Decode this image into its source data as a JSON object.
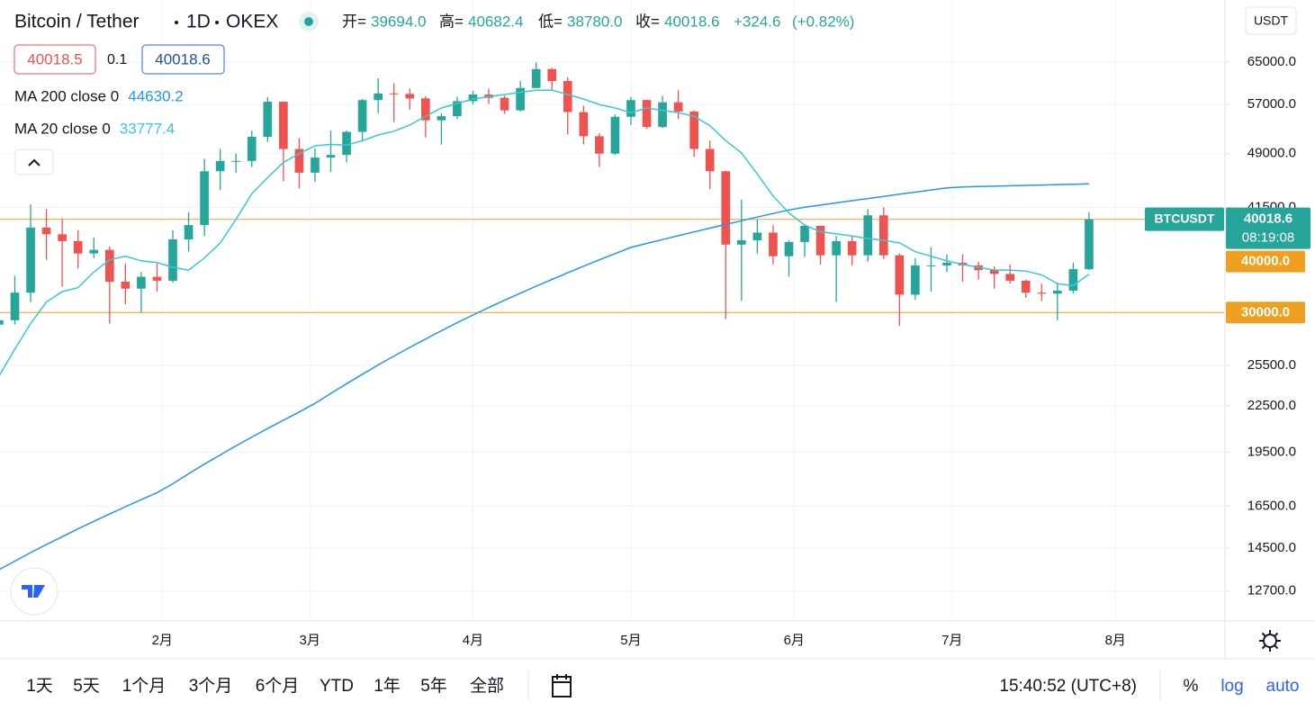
{
  "header": {
    "symbol": "Bitcoin / Tether",
    "interval": "1D",
    "exchange": "OKEX",
    "quote": [
      {
        "label": "开=",
        "value": "39694.0"
      },
      {
        "label": "高=",
        "value": "40682.4"
      },
      {
        "label": "低=",
        "value": "38780.0"
      },
      {
        "label": "收=",
        "value": "40018.6"
      }
    ],
    "change": "+324.6",
    "change_pct": "(+0.82%)",
    "bid": "40018.5",
    "spread": "0.1",
    "ask": "40018.6",
    "currency": "USDT"
  },
  "toolbar": {
    "ranges": [
      "1天",
      "5天",
      "1个月",
      "3个月",
      "6个月",
      "YTD",
      "1年",
      "5年",
      "全部"
    ],
    "time": "15:40:52 (UTC+8)",
    "percent": "%",
    "log": "log",
    "auto": "auto"
  },
  "chart_data": {
    "type": "candlestick",
    "log_scale": true,
    "grid": true,
    "up_color": "#26a69a",
    "down_color": "#ef5350",
    "xlim": [
      0.06,
      77.55
    ],
    "xticks": [
      {
        "value": 10.33,
        "label": "2月"
      },
      {
        "value": 19.67,
        "label": "3月"
      },
      {
        "value": 30,
        "label": "4月"
      },
      {
        "value": 40,
        "label": "5月"
      },
      {
        "value": 50.33,
        "label": "6月"
      },
      {
        "value": 60.33,
        "label": "7月"
      },
      {
        "value": 70.67,
        "label": "8月"
      }
    ],
    "ylim": [
      11580,
      78720
    ],
    "yticks": [
      {
        "value": 65000,
        "label": "65000.0"
      },
      {
        "value": 57000,
        "label": "57000.0"
      },
      {
        "value": 49000,
        "label": "49000.0"
      },
      {
        "value": 41500,
        "label": "41500.0"
      },
      {
        "value": 25500,
        "label": "25500.0"
      },
      {
        "value": 22500,
        "label": "22500.0"
      },
      {
        "value": 19500,
        "label": "19500.0"
      },
      {
        "value": 16500,
        "label": "16500.0"
      },
      {
        "value": 14500,
        "label": "14500.0"
      },
      {
        "value": 12700,
        "label": "12700.0"
      }
    ],
    "open": [
      28900,
      29300,
      31900,
      39000,
      38200,
      37400,
      36000,
      36400,
      33000,
      32300,
      33500,
      33100,
      37600,
      39300,
      46400,
      47900,
      47900,
      51600,
      57500,
      49700,
      46200,
      48400,
      48800,
      52400,
      57800,
      59000,
      58900,
      58100,
      54300,
      55000,
      57600,
      58800,
      58200,
      56000,
      60000,
      63600,
      61300,
      55700,
      51700,
      49000,
      54900,
      57800,
      53200,
      57400,
      55800,
      49700,
      46400,
      37000,
      37500,
      38400,
      35700,
      37300,
      39200,
      35800,
      37400,
      35800,
      40500,
      35800,
      31700,
      34700,
      34700,
      35000,
      34700,
      34200,
      33800,
      33100,
      31900,
      31800,
      32100,
      34300
    ],
    "high": [
      30000,
      33600,
      41900,
      41300,
      40100,
      38700,
      37800,
      36800,
      34900,
      34000,
      34900,
      38700,
      40900,
      48200,
      49700,
      49000,
      52600,
      58300,
      57500,
      51400,
      49800,
      52600,
      52600,
      58000,
      61800,
      60900,
      59900,
      58500,
      55500,
      58400,
      59500,
      59900,
      58600,
      61300,
      64900,
      63800,
      62000,
      56800,
      52200,
      55300,
      58400,
      57900,
      58600,
      59600,
      56000,
      51000,
      46500,
      42500,
      40000,
      39300,
      37500,
      39400,
      39200,
      38000,
      38000,
      41300,
      41500,
      36000,
      35500,
      36700,
      35900,
      35900,
      35100,
      34600,
      34800,
      33200,
      32800,
      32900,
      35000,
      40900
    ],
    "low": [
      27700,
      28900,
      31000,
      35300,
      32500,
      34400,
      35500,
      29000,
      30800,
      30000,
      32000,
      32900,
      36200,
      38000,
      43800,
      46200,
      47000,
      50800,
      45000,
      44000,
      44900,
      46300,
      47700,
      51000,
      55500,
      54000,
      56100,
      51500,
      50400,
      54500,
      57000,
      57100,
      55400,
      55800,
      59900,
      59700,
      52000,
      50400,
      47000,
      48800,
      53500,
      52900,
      53000,
      54500,
      48500,
      43900,
      29400,
      31100,
      36000,
      34800,
      33500,
      35600,
      34800,
      31000,
      34700,
      35100,
      35400,
      28800,
      31200,
      32000,
      34000,
      33000,
      33200,
      32300,
      32800,
      31400,
      31100,
      29300,
      31800,
      34200
    ],
    "close": [
      29300,
      31900,
      39000,
      38200,
      37400,
      36000,
      36400,
      33000,
      32300,
      33500,
      33100,
      37600,
      39300,
      46400,
      47900,
      47900,
      51600,
      57500,
      49700,
      46200,
      48400,
      48800,
      52400,
      57800,
      59000,
      58900,
      58100,
      54300,
      55000,
      57600,
      58800,
      58200,
      56000,
      60000,
      63600,
      61300,
      55700,
      51700,
      49000,
      54900,
      57800,
      53200,
      57400,
      55800,
      49700,
      46400,
      37000,
      37500,
      38400,
      35700,
      37300,
      39200,
      35800,
      37400,
      35800,
      40500,
      35800,
      31700,
      34700,
      34700,
      35000,
      34700,
      34200,
      33800,
      33100,
      31900,
      31800,
      32100,
      34300,
      40018.6
    ],
    "series": [
      {
        "name": "MA 200 close 0",
        "color": "#2196f3",
        "values": [
          13570,
          13930,
          14300,
          14660,
          15020,
          15390,
          15750,
          16110,
          16480,
          16840,
          17210,
          17690,
          18240,
          18790,
          19330,
          19880,
          20430,
          20970,
          21520,
          22070,
          22670,
          23380,
          24090,
          24800,
          25520,
          26230,
          26940,
          27650,
          28360,
          29070,
          29780,
          30470,
          31160,
          31850,
          32540,
          33230,
          33920,
          34610,
          35300,
          35990,
          36680,
          37130,
          37580,
          38030,
          38480,
          38930,
          39380,
          39830,
          40280,
          40730,
          41180,
          41520,
          41800,
          42090,
          42370,
          42660,
          42940,
          43230,
          43510,
          43790,
          44080,
          44210,
          44260,
          44310,
          44370,
          44420,
          44470,
          44530,
          44580,
          44630.2
        ]
      },
      {
        "name": "MA 20 close 0",
        "color": "#38c6d9",
        "values": [
          24660,
          26800,
          29000,
          31000,
          32000,
          32400,
          34000,
          35300,
          35700,
          35200,
          35000,
          34500,
          34200,
          35500,
          37200,
          40000,
          43300,
          45500,
          47700,
          49000,
          50200,
          50400,
          50300,
          51000,
          51900,
          52500,
          53500,
          55000,
          56400,
          57200,
          58000,
          58400,
          58800,
          59200,
          59600,
          59600,
          58800,
          58000,
          57000,
          56400,
          55600,
          56400,
          56000,
          55600,
          55000,
          53400,
          51000,
          49100,
          46000,
          43000,
          40800,
          39300,
          38500,
          38250,
          38000,
          37700,
          37500,
          37200,
          36200,
          35700,
          35200,
          34800,
          34500,
          34200,
          34200,
          34100,
          33700,
          32800,
          32600,
          33777.4
        ]
      }
    ],
    "hlines": [
      {
        "value": 40000,
        "label": "40000.0",
        "color": "#f0a020"
      },
      {
        "value": 30000,
        "label": "30000.0",
        "color": "#f0a020"
      }
    ],
    "last_price": {
      "symbol": "BTCUSDT",
      "countdown": "08:19:08",
      "color": "#26a69a"
    }
  }
}
